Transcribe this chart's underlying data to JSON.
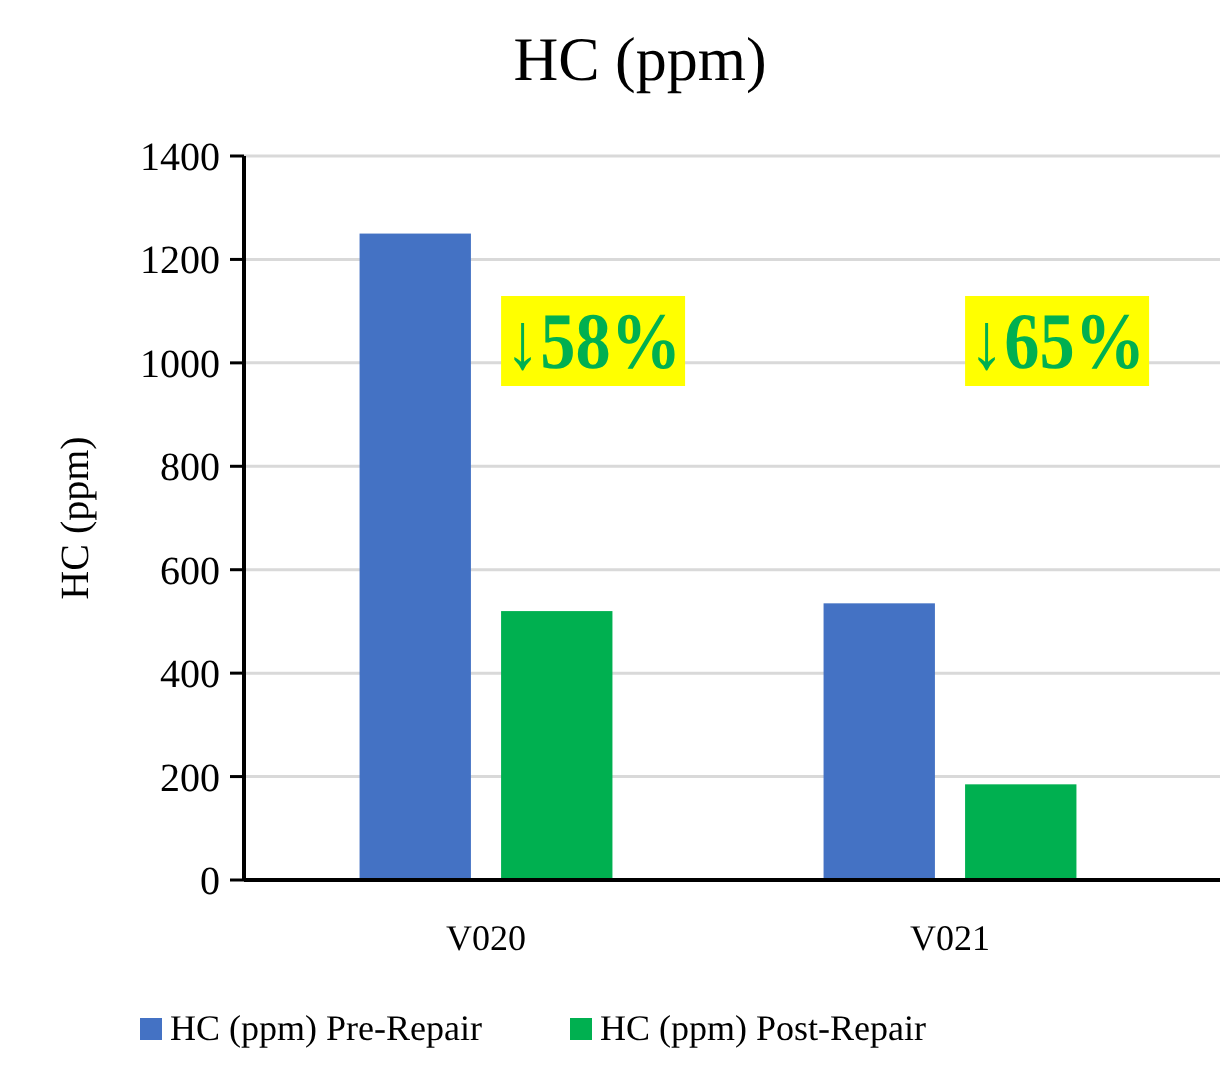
{
  "chart_data": {
    "type": "bar",
    "title": "HC (ppm)",
    "ylabel": "HC (ppm)",
    "categories": [
      "V020",
      "V021"
    ],
    "series": [
      {
        "name": "HC (ppm) Pre-Repair",
        "color": "#4472c4",
        "values": [
          1250,
          535
        ]
      },
      {
        "name": "HC (ppm) Post-Repair",
        "color": "#00b050",
        "values": [
          520,
          185
        ]
      }
    ],
    "ylim": [
      0,
      1400
    ],
    "yticks": [
      0,
      200,
      400,
      600,
      800,
      1000,
      1200,
      1400
    ],
    "grid": "y",
    "legend": "bottom",
    "annotations": [
      "↓58%",
      "↓65%"
    ]
  }
}
